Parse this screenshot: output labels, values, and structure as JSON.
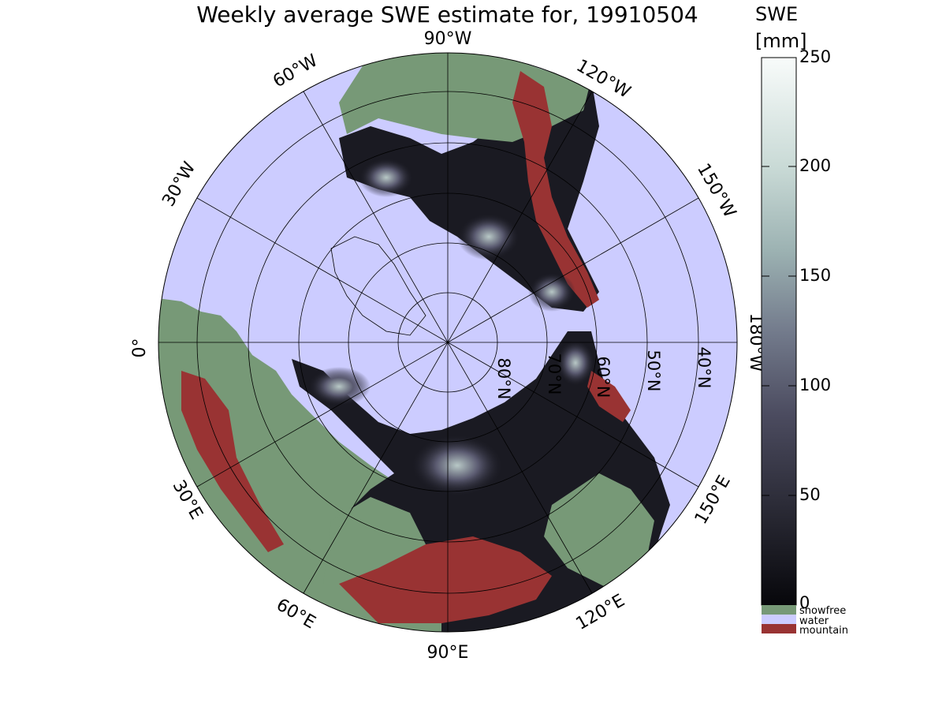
{
  "title": "Weekly average SWE estimate for, 19910504",
  "colorbar": {
    "title_line1": "SWE",
    "title_line2": "[mm]",
    "ticks": [
      "250",
      "200",
      "150",
      "100",
      "50",
      "0"
    ],
    "range": [
      0,
      250
    ],
    "gradient_colors": [
      "#07070b",
      "#25252f",
      "#4c4c60",
      "#737b8c",
      "#9db3b3",
      "#c9dad6",
      "#f8fbfa"
    ]
  },
  "legend": [
    {
      "label": "snowfree",
      "color": "#779977"
    },
    {
      "label": "water",
      "color": "#ccccff"
    },
    {
      "label": "mountain",
      "color": "#993333"
    }
  ],
  "longitude_labels": [
    "90°W",
    "120°W",
    "150°W",
    "180°W",
    "150°E",
    "120°E",
    "90°E",
    "60°E",
    "30°E",
    "0°",
    "30°W",
    "60°W"
  ],
  "latitude_labels": [
    "80°N",
    "70°N",
    "60°N",
    "50°N",
    "40°N"
  ],
  "colors": {
    "water": "#ccccff",
    "snowfree": "#779977",
    "mountain": "#993333",
    "snow_dark": "#15151c",
    "snow_mid": "#4a4a5c",
    "snow_light": "#b8c8c6"
  }
}
